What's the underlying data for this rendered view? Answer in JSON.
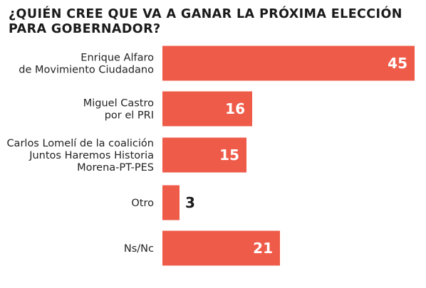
{
  "title_lines": [
    "¿QUIÉN CREE QUE VA A GANAR LA PRÓXIMA ELECCIÓN",
    "PARA GOBERNADOR?"
  ],
  "colors": {
    "bar": "#ef5b49",
    "value_text_outside": "#1a1a1a",
    "value_text_inside": "#ffffff"
  },
  "chart_data": {
    "type": "bar",
    "orientation": "horizontal",
    "title": "¿QUIÉN CREE QUE VA A GANAR LA PRÓXIMA ELECCIÓN PARA GOBERNADOR?",
    "categories": [
      [
        "Enrique Alfaro",
        "de Movimiento Ciudadano"
      ],
      [
        "Miguel Castro",
        "por el PRI"
      ],
      [
        "Carlos Lomelí de la coalición",
        "Juntos Haremos Historia",
        "Morena-PT-PES"
      ],
      [
        "Otro"
      ],
      [
        "Ns/Nc"
      ]
    ],
    "values": [
      45,
      16,
      15,
      3,
      21
    ],
    "xlim": [
      0,
      45
    ],
    "grid": false,
    "legend": "none"
  }
}
